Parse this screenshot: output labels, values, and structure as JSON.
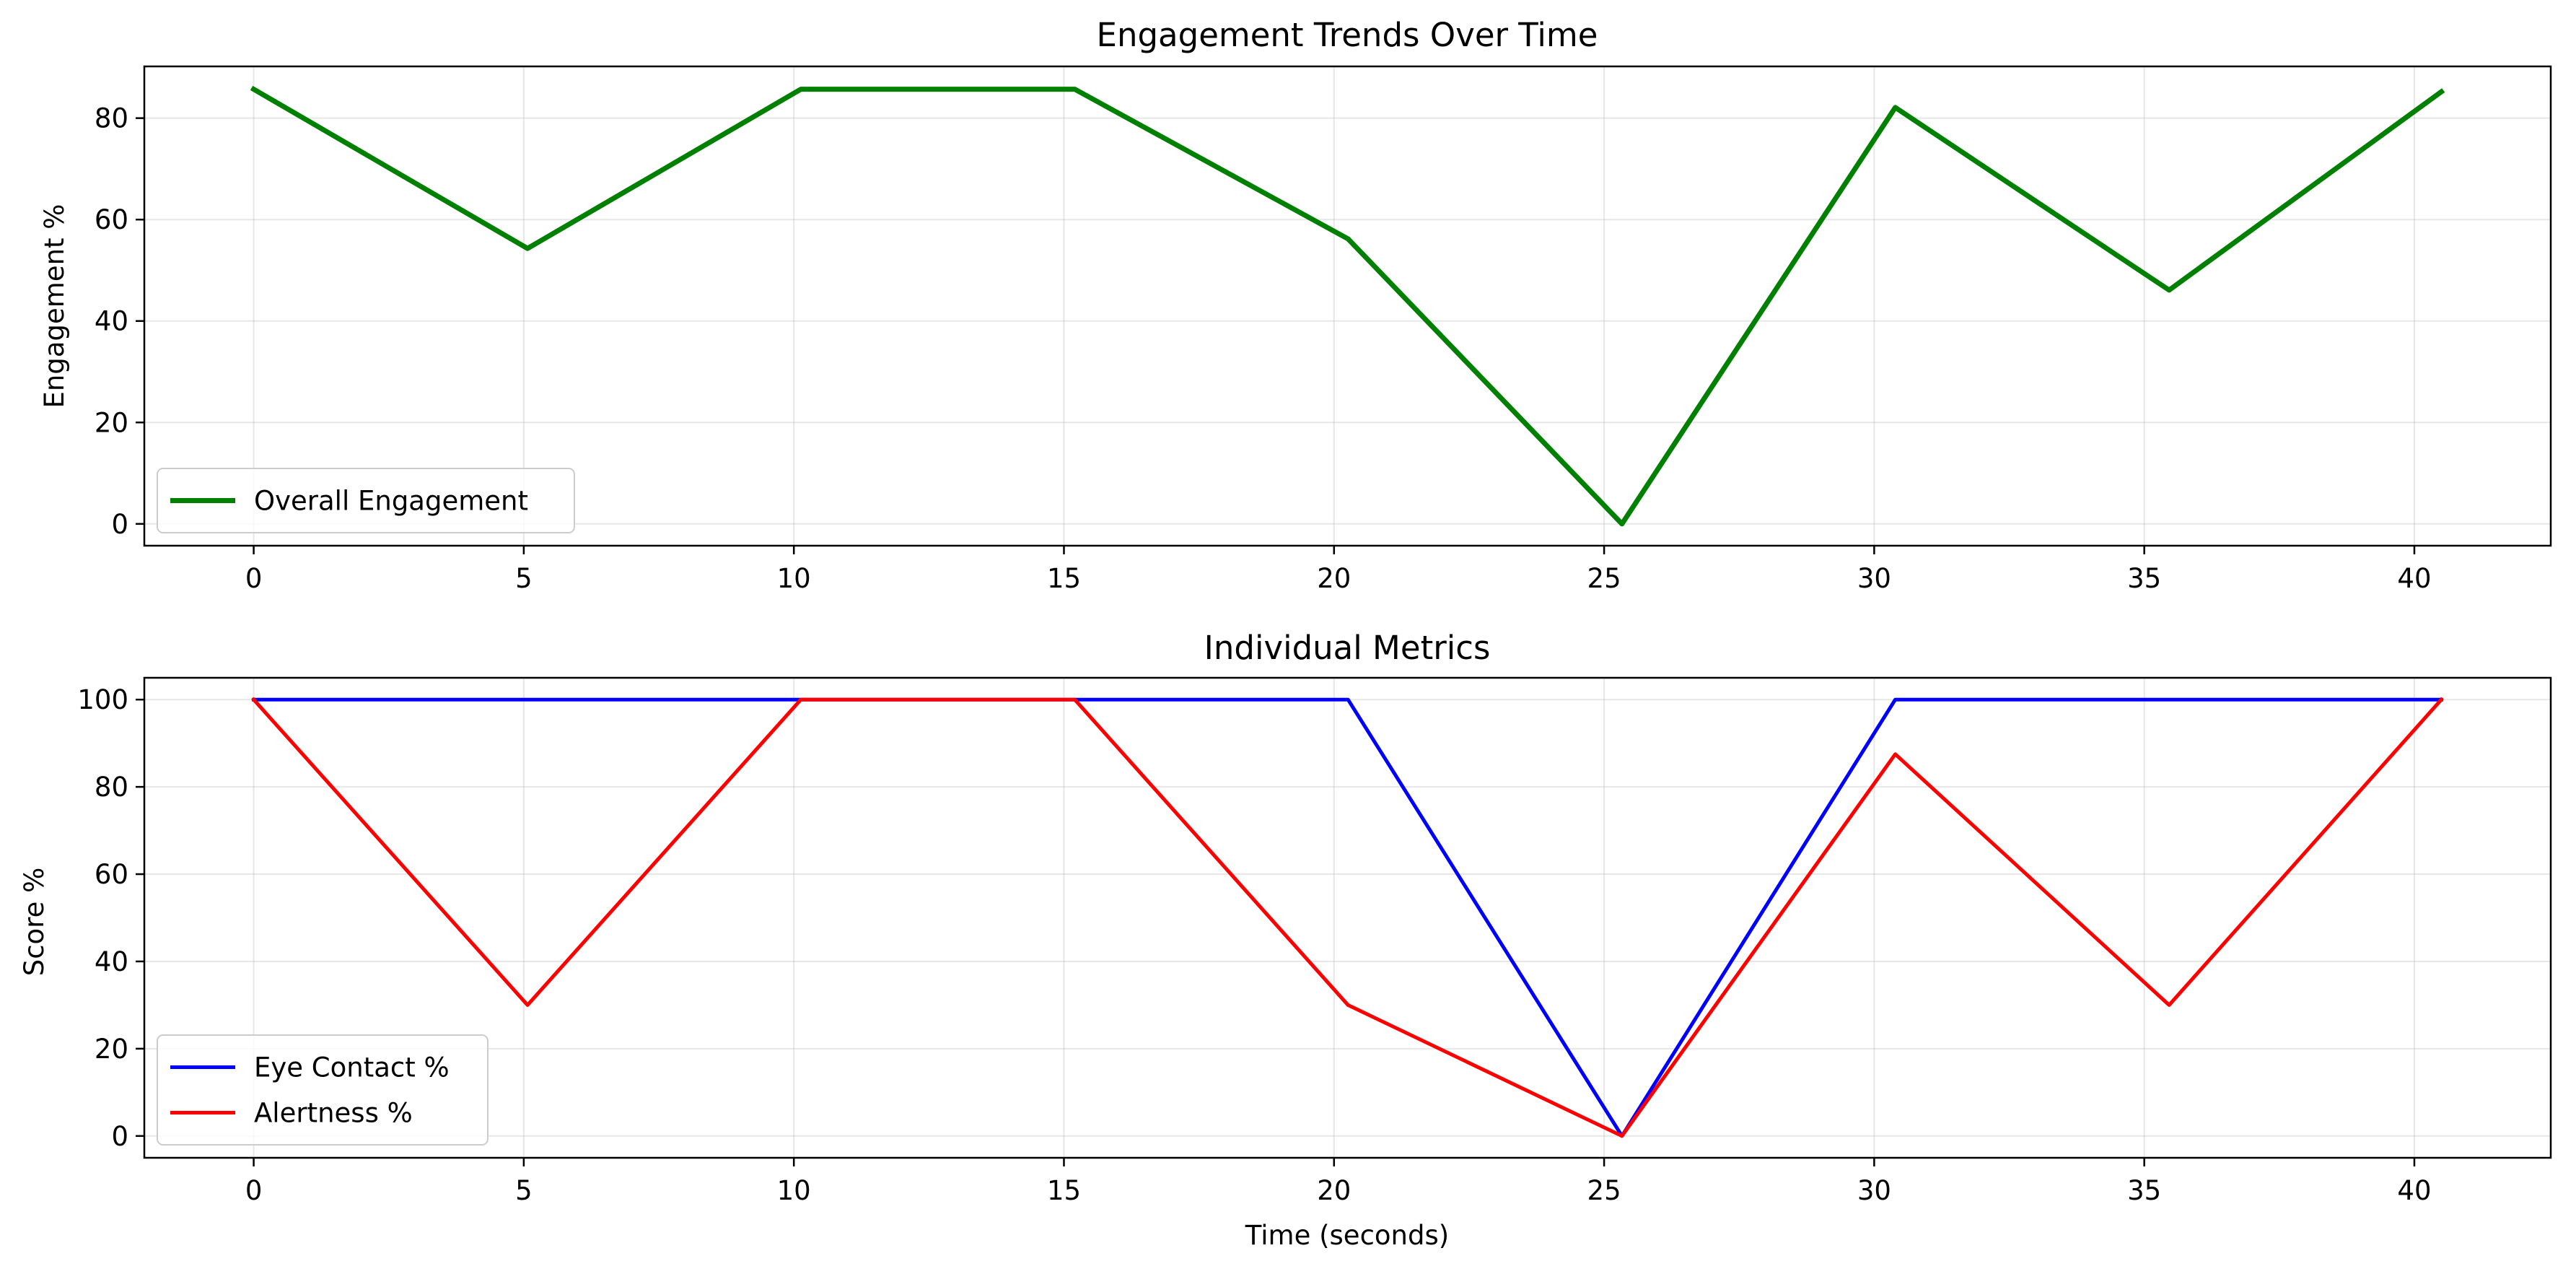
{
  "chart_data": [
    {
      "type": "line",
      "title": "Engagement Trends Over Time",
      "xlabel": "",
      "ylabel": "Engagement %",
      "xlim": [
        -2.025,
        42.525
      ],
      "ylim": [
        -4.3,
        90.2
      ],
      "xticks": [
        0,
        5,
        10,
        15,
        20,
        25,
        30,
        35,
        40
      ],
      "yticks": [
        0,
        20,
        40,
        60,
        80
      ],
      "grid": true,
      "legend": "lower-left",
      "x": [
        0,
        5.07,
        10.13,
        15.2,
        20.26,
        25.33,
        30.39,
        35.46,
        40.5
      ],
      "series": [
        {
          "name": "Overall Engagement",
          "color": "#008000",
          "values": [
            85.7,
            54.3,
            85.7,
            85.7,
            56.2,
            0,
            82.1,
            46.1,
            85.2
          ]
        }
      ]
    },
    {
      "type": "line",
      "title": "Individual Metrics",
      "xlabel": "Time (seconds)",
      "ylabel": "Score %",
      "xlim": [
        -2.025,
        42.525
      ],
      "ylim": [
        -5,
        105
      ],
      "xticks": [
        0,
        5,
        10,
        15,
        20,
        25,
        30,
        35,
        40
      ],
      "yticks": [
        0,
        20,
        40,
        60,
        80,
        100
      ],
      "grid": true,
      "legend": "lower-left",
      "x": [
        0,
        5.07,
        10.13,
        15.2,
        20.26,
        25.33,
        30.39,
        35.46,
        40.5
      ],
      "series": [
        {
          "name": "Eye Contact %",
          "color": "#0000ff",
          "values": [
            100,
            100,
            100,
            100,
            100,
            0,
            100,
            100,
            100
          ]
        },
        {
          "name": "Alertness %",
          "color": "#ff0000",
          "values": [
            100,
            30,
            100,
            100,
            30,
            0,
            87.5,
            30,
            100
          ]
        }
      ]
    }
  ]
}
